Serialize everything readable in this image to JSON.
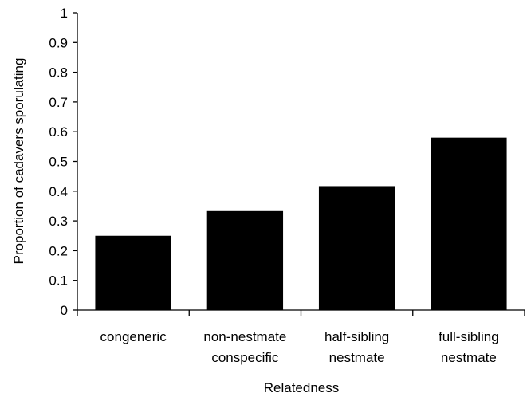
{
  "chart_data": {
    "type": "bar",
    "title": "",
    "xlabel": "Relatedness",
    "ylabel": "Proportion of cadavers sporulating",
    "ylim": [
      0,
      1
    ],
    "yticks": [
      "0",
      "0.1",
      "0.2",
      "0.3",
      "0.4",
      "0.5",
      "0.6",
      "0.7",
      "0.8",
      "0.9",
      "1"
    ],
    "categories": [
      [
        "congeneric"
      ],
      [
        "non-nestmate",
        "conspecific"
      ],
      [
        "half-sibling",
        "nestmate"
      ],
      [
        "full-sibling",
        "nestmate"
      ]
    ],
    "values": [
      0.25,
      0.333,
      0.417,
      0.58
    ],
    "bar_color": "#000000",
    "grid": false,
    "legend": "none"
  }
}
